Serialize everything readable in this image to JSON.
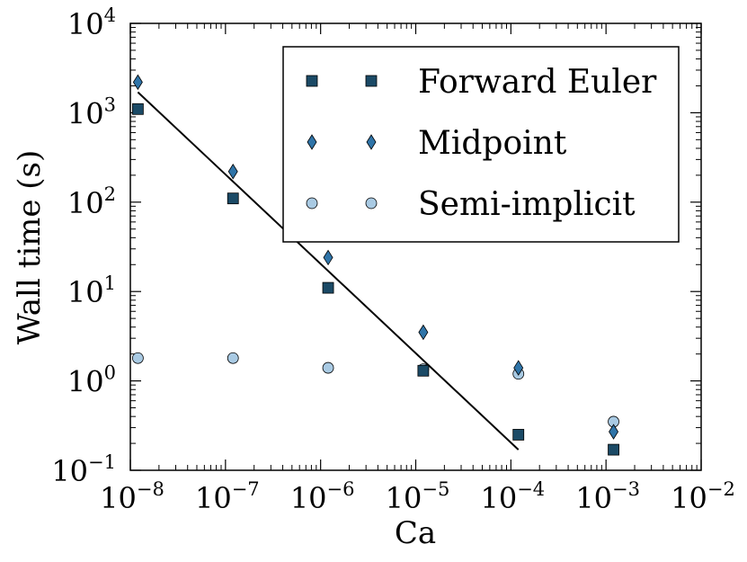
{
  "chart_data": {
    "type": "scatter",
    "title": "",
    "xlabel": "Ca",
    "ylabel": "Wall time (s)",
    "xscale": "log",
    "yscale": "log",
    "xlim": [
      1e-08,
      0.01
    ],
    "ylim": [
      0.1,
      10000
    ],
    "grid": false,
    "legend_position": "top-right",
    "x_ticks": [
      {
        "base": "10",
        "exp": "−8",
        "value": 1e-08
      },
      {
        "base": "10",
        "exp": "−7",
        "value": 1e-07
      },
      {
        "base": "10",
        "exp": "−6",
        "value": 1e-06
      },
      {
        "base": "10",
        "exp": "−5",
        "value": 1e-05
      },
      {
        "base": "10",
        "exp": "−4",
        "value": 0.0001
      },
      {
        "base": "10",
        "exp": "−3",
        "value": 0.001
      },
      {
        "base": "10",
        "exp": "−2",
        "value": 0.01
      }
    ],
    "y_ticks": [
      {
        "base": "10",
        "exp": "−1",
        "value": 0.1
      },
      {
        "base": "10",
        "exp": "0",
        "value": 1
      },
      {
        "base": "10",
        "exp": "1",
        "value": 10
      },
      {
        "base": "10",
        "exp": "2",
        "value": 100
      },
      {
        "base": "10",
        "exp": "3",
        "value": 1000
      },
      {
        "base": "10",
        "exp": "4",
        "value": 10000
      }
    ],
    "series": [
      {
        "name": "Forward Euler",
        "marker": "square",
        "color": "#1b4a66",
        "x": [
          1.2e-08,
          1.2e-07,
          1.2e-06,
          1.2e-05,
          0.00012,
          0.0012
        ],
        "y": [
          1100,
          110,
          11,
          1.3,
          0.25,
          0.17
        ]
      },
      {
        "name": "Midpoint",
        "marker": "diamond",
        "color": "#2f74a8",
        "x": [
          1.2e-08,
          1.2e-07,
          1.2e-06,
          1.2e-05,
          0.00012,
          0.0012
        ],
        "y": [
          2200,
          220,
          24,
          3.5,
          1.4,
          0.27
        ]
      },
      {
        "name": "Semi-implicit",
        "marker": "circle",
        "color": "#a9cae3",
        "x": [
          1.2e-08,
          1.2e-07,
          1.2e-06,
          1.2e-05,
          0.00012,
          0.0012
        ],
        "y": [
          1.8,
          1.8,
          1.4,
          1.35,
          1.2,
          0.35
        ]
      }
    ],
    "fit_line": {
      "x": [
        1.2e-08,
        0.00012
      ],
      "y": [
        1700,
        0.17
      ]
    }
  }
}
